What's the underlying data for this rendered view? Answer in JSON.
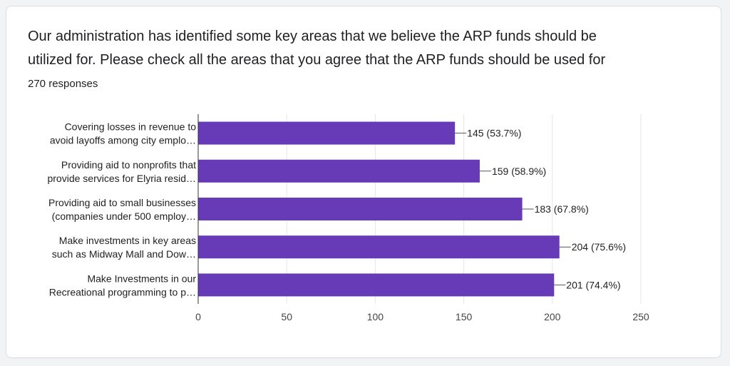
{
  "question": {
    "title_line1": "Our administration has identified some key areas that we believe the ARP funds should be",
    "title_line2": "utilized for. Please check all the areas that you agree that the ARP funds should be used for",
    "responses": "270 responses"
  },
  "colors": {
    "bar": "#673ab7",
    "grid": "#e6e6e6",
    "axis": "#333333"
  },
  "chart_data": {
    "type": "bar",
    "orientation": "horizontal",
    "categories": [
      [
        "Covering losses in revenue to",
        "avoid layoffs among city emplo…"
      ],
      [
        "Providing aid to nonprofits that",
        "provide services for Elyria resid…"
      ],
      [
        "Providing aid to small businesses",
        "(companies under 500 employ…"
      ],
      [
        "Make investments in key areas",
        "such as Midway Mall and Dow…"
      ],
      [
        "Make Investments in our",
        "Recreational programming to p…"
      ]
    ],
    "values": [
      145,
      159,
      183,
      204,
      201
    ],
    "data_labels": [
      "145 (53.7%)",
      "159 (58.9%)",
      "183 (67.8%)",
      "204 (75.6%)",
      "201 (74.4%)"
    ],
    "xlim": [
      0,
      250
    ],
    "ticks": [
      0,
      50,
      100,
      150,
      200,
      250
    ],
    "grid": true,
    "legend": "none"
  }
}
